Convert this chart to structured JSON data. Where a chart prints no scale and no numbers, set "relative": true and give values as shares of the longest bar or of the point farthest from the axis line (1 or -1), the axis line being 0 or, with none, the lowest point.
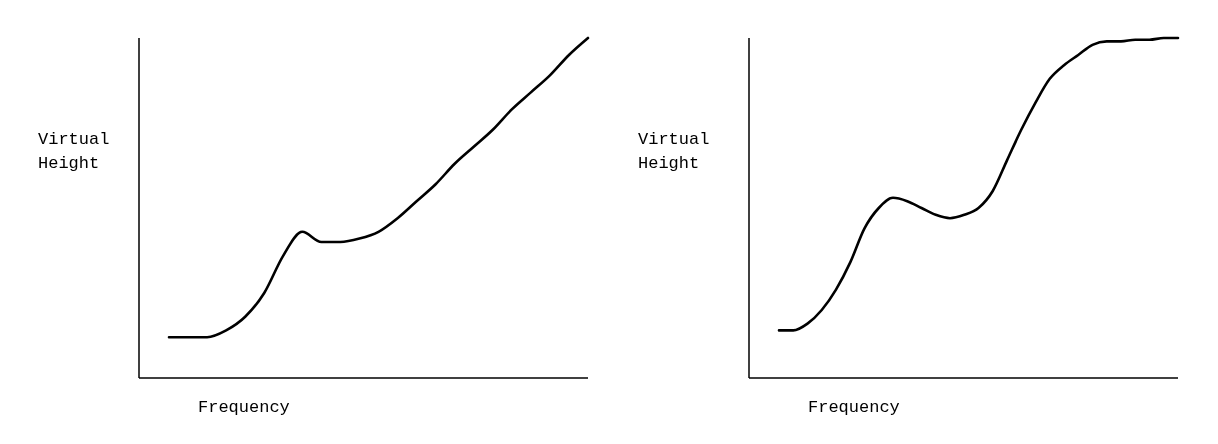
{
  "chart_data": [
    {
      "type": "line",
      "xlabel": "Frequency",
      "ylabel": "Virtual\nHeight",
      "relative": true,
      "marker": "none",
      "line_style": "solid",
      "grid": false,
      "categories": [
        null,
        null,
        null,
        null,
        null,
        null,
        null,
        null,
        null,
        null,
        null,
        null,
        null,
        null,
        null,
        null,
        null,
        null,
        null,
        null,
        null,
        null,
        null
      ],
      "series": [
        {
          "color": "#000000",
          "values": [
            0.12,
            0.12,
            0.12,
            0.14,
            0.18,
            0.25,
            0.36,
            0.43,
            0.4,
            0.4,
            0.41,
            0.43,
            0.47,
            0.52,
            0.57,
            0.63,
            0.68,
            0.73,
            0.79,
            0.84,
            0.89,
            0.95,
            1
          ]
        }
      ]
    },
    {
      "type": "line",
      "xlabel": "Frequency",
      "ylabel": "Virtual\nHeight",
      "relative": true,
      "marker": "none",
      "line_style": "solid",
      "grid": false,
      "categories": [
        null,
        null,
        null,
        null,
        null,
        null,
        null,
        null,
        null,
        null,
        null,
        null,
        null,
        null,
        null,
        null,
        null,
        null,
        null,
        null,
        null,
        null,
        null,
        null,
        null,
        null,
        null,
        null,
        null
      ],
      "series": [
        {
          "color": "#000000",
          "values": [
            0.14,
            0.14,
            0.16,
            0.2,
            0.26,
            0.34,
            0.44,
            0.5,
            0.53,
            0.52,
            0.5,
            0.48,
            0.47,
            0.48,
            0.5,
            0.55,
            0.64,
            0.73,
            0.81,
            0.88,
            0.92,
            0.95,
            0.98,
            0.99,
            0.99,
            0.995,
            0.995,
            1,
            1
          ]
        }
      ]
    }
  ]
}
